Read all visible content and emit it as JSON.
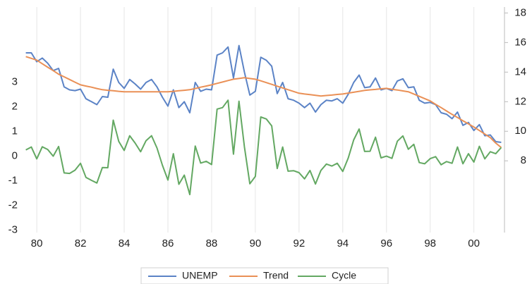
{
  "chart_data": {
    "type": "line",
    "x": [
      1979.5,
      1979.75,
      1980,
      1980.25,
      1980.5,
      1980.75,
      1981,
      1981.25,
      1981.5,
      1981.75,
      1982,
      1982.25,
      1982.5,
      1982.75,
      1983,
      1983.25,
      1983.5,
      1983.75,
      1984,
      1984.25,
      1984.5,
      1984.75,
      1985,
      1985.25,
      1985.5,
      1985.75,
      1986,
      1986.25,
      1986.5,
      1986.75,
      1987,
      1987.25,
      1987.5,
      1987.75,
      1988,
      1988.25,
      1988.5,
      1988.75,
      1989,
      1989.25,
      1989.5,
      1989.75,
      1990,
      1990.25,
      1990.5,
      1990.75,
      1991,
      1991.25,
      1991.5,
      1991.75,
      1992,
      1992.25,
      1992.5,
      1992.75,
      1993,
      1993.25,
      1993.5,
      1993.75,
      1994,
      1994.25,
      1994.5,
      1994.75,
      1995,
      1995.25,
      1995.5,
      1995.75,
      1996,
      1996.25,
      1996.5,
      1996.75,
      1997,
      1997.25,
      1997.5,
      1997.75,
      1998,
      1998.25,
      1998.5,
      1998.75,
      1999,
      1999.25,
      1999.5,
      1999.75,
      2000,
      2000.25,
      2000.5,
      2000.75,
      2001,
      2001.25
    ],
    "series": [
      {
        "name": "UNEMP",
        "color": "#5b83c6",
        "axis": "y2",
        "values": [
          15.3,
          15.3,
          14.7,
          14.95,
          14.6,
          14.1,
          14.25,
          13.0,
          12.8,
          12.75,
          12.85,
          12.2,
          12.0,
          11.8,
          12.35,
          12.3,
          14.2,
          13.3,
          12.9,
          13.5,
          13.2,
          12.85,
          13.3,
          13.5,
          13.0,
          12.3,
          11.7,
          12.8,
          11.6,
          12.0,
          11.25,
          13.3,
          12.7,
          12.85,
          12.8,
          15.15,
          15.3,
          15.7,
          13.6,
          15.8,
          14.0,
          12.45,
          12.7,
          15.0,
          14.8,
          14.4,
          12.55,
          13.3,
          12.2,
          12.1,
          11.9,
          11.6,
          11.9,
          11.3,
          11.8,
          12.1,
          12.05,
          12.2,
          11.9,
          12.5,
          13.3,
          13.8,
          12.95,
          13.0,
          13.6,
          12.8,
          12.9,
          12.75,
          13.4,
          13.55,
          12.95,
          13.0,
          12.1,
          11.9,
          11.95,
          11.8,
          11.25,
          11.15,
          10.85,
          11.3,
          10.4,
          10.6,
          10.05,
          10.45,
          9.7,
          9.75,
          9.3,
          9.25
        ]
      },
      {
        "name": "Trend",
        "color": "#ea9056",
        "axis": "y2",
        "values": [
          15.05,
          14.93,
          14.81,
          14.57,
          14.33,
          14.1,
          13.86,
          13.68,
          13.5,
          13.32,
          13.14,
          13.06,
          12.98,
          12.89,
          12.81,
          12.77,
          12.74,
          12.7,
          12.67,
          12.67,
          12.67,
          12.67,
          12.67,
          12.67,
          12.67,
          12.67,
          12.67,
          12.7,
          12.74,
          12.77,
          12.81,
          12.89,
          12.98,
          13.06,
          13.14,
          13.24,
          13.33,
          13.43,
          13.52,
          13.57,
          13.62,
          13.57,
          13.52,
          13.41,
          13.29,
          13.17,
          13.05,
          12.93,
          12.81,
          12.69,
          12.57,
          12.52,
          12.48,
          12.43,
          12.38,
          12.42,
          12.45,
          12.49,
          12.52,
          12.58,
          12.64,
          12.7,
          12.76,
          12.8,
          12.83,
          12.87,
          12.9,
          12.84,
          12.79,
          12.73,
          12.67,
          12.52,
          12.36,
          12.21,
          12.05,
          11.82,
          11.6,
          11.37,
          11.14,
          10.93,
          10.71,
          10.5,
          10.29,
          10.05,
          9.81,
          9.57,
          9.2,
          8.9
        ]
      },
      {
        "name": "Cycle",
        "color": "#63a862",
        "axis": "y",
        "values": [
          0.25,
          0.37,
          -0.11,
          0.38,
          0.27,
          0.0,
          0.39,
          -0.68,
          -0.7,
          -0.57,
          -0.29,
          -0.86,
          -0.98,
          -1.09,
          -0.46,
          -0.47,
          1.46,
          0.6,
          0.23,
          0.83,
          0.53,
          0.18,
          0.63,
          0.83,
          0.33,
          -0.37,
          -0.97,
          0.1,
          -1.14,
          -0.77,
          -1.56,
          0.41,
          -0.28,
          -0.21,
          -0.34,
          1.91,
          1.97,
          2.27,
          0.08,
          2.23,
          0.38,
          -1.12,
          -0.82,
          1.59,
          1.51,
          1.23,
          -0.5,
          0.37,
          -0.61,
          -0.59,
          -0.67,
          -0.92,
          -0.58,
          -1.13,
          -0.58,
          -0.32,
          -0.4,
          -0.29,
          -0.62,
          -0.08,
          0.66,
          1.1,
          0.19,
          0.2,
          0.77,
          -0.07,
          0.0,
          -0.09,
          0.61,
          0.82,
          0.28,
          0.48,
          -0.26,
          -0.31,
          -0.1,
          -0.02,
          -0.35,
          -0.22,
          -0.29,
          0.37,
          -0.31,
          0.1,
          -0.24,
          0.4,
          -0.11,
          0.18,
          0.1,
          0.35
        ]
      }
    ],
    "xlim": [
      1979.35,
      2001.4
    ],
    "xticks": [
      {
        "value": 1980,
        "label": "80"
      },
      {
        "value": 1982,
        "label": "82"
      },
      {
        "value": 1984,
        "label": "84"
      },
      {
        "value": 1986,
        "label": "86"
      },
      {
        "value": 1988,
        "label": "88"
      },
      {
        "value": 1990,
        "label": "90"
      },
      {
        "value": 1992,
        "label": "92"
      },
      {
        "value": 1994,
        "label": "94"
      },
      {
        "value": 1996,
        "label": "96"
      },
      {
        "value": 1998,
        "label": "98"
      },
      {
        "value": 2000,
        "label": "00"
      }
    ],
    "ylim": [
      -3.1,
      6.05
    ],
    "yticks": [
      -3,
      -2,
      -1,
      0,
      1,
      2,
      3
    ],
    "y2lim": [
      3.15,
      18.4
    ],
    "y2ticks": [
      8,
      10,
      12,
      14,
      16,
      18
    ],
    "grid": "x",
    "legend": "bottom"
  }
}
